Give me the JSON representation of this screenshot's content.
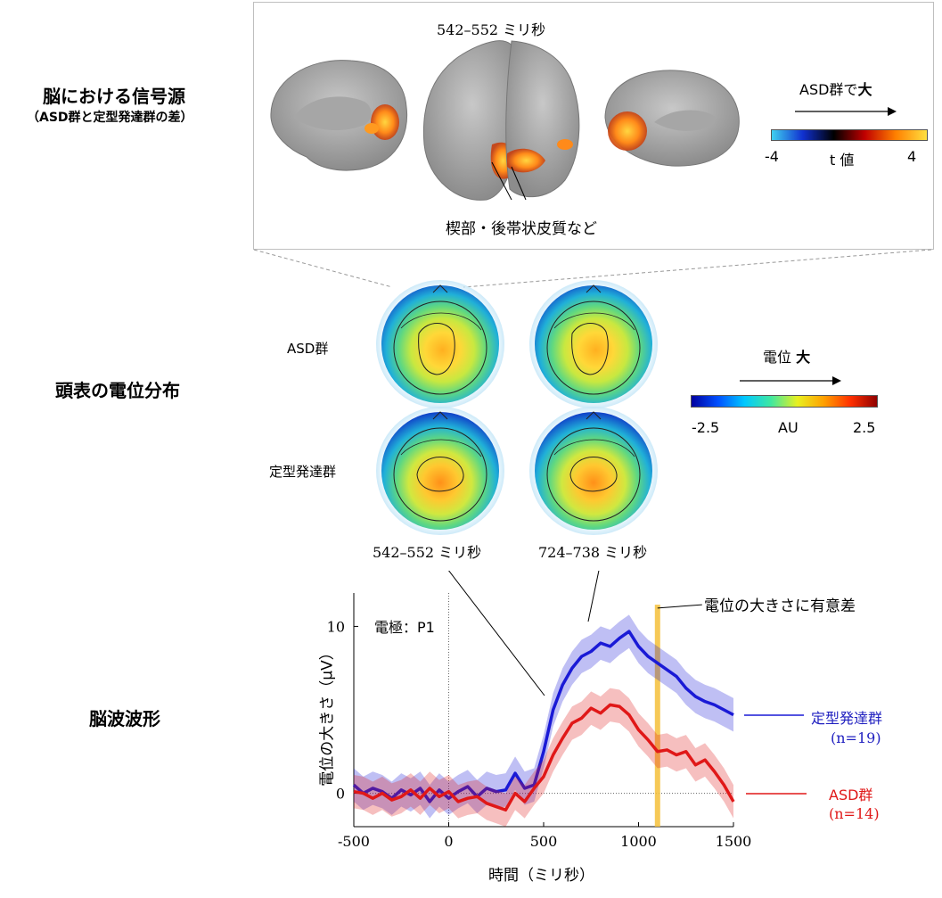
{
  "sections": {
    "brain_source_title": "脳における信号源",
    "brain_source_sub": "（ASD群と定型発達群の差）",
    "scalp_title": "頭表の電位分布",
    "waveform_title": "脳波波形"
  },
  "brain_panel": {
    "time_label": "542–552 ミリ秒",
    "region_label": "楔部・後帯状皮質など",
    "colorbar_title": "ASD群で",
    "colorbar_title_bold": "大",
    "colorbar_axis_label": "t 値",
    "colorbar_min": "-4",
    "colorbar_max": "4",
    "colors": [
      "#3fd0f0",
      "#1030d0",
      "#000000",
      "#c00000",
      "#ff8000",
      "#ffe040"
    ]
  },
  "scalp": {
    "row_labels": [
      "ASD群",
      "定型発達群"
    ],
    "time_labels": [
      "542–552 ミリ秒",
      "724–738 ミリ秒"
    ],
    "colorbar_title": "電位",
    "colorbar_title_bold": "大",
    "colorbar_axis_label": "AU",
    "colorbar_min": "-2.5",
    "colorbar_max": "2.5"
  },
  "chart_data": {
    "type": "line",
    "xlabel": "時間（ミリ秒）",
    "ylabel": "電位の大きさ（μV）",
    "xlim": [
      -500,
      1500
    ],
    "ylim": [
      -2,
      12
    ],
    "xticks": [
      "-500",
      "0",
      "500",
      "1000",
      "1500"
    ],
    "yticks": [
      "0",
      "10"
    ],
    "electrode_label": "電極：P1",
    "significance_label": "電位の大きさに有意差",
    "significance_x": 1100,
    "series": [
      {
        "name": "定型発達群",
        "n_label": "(n=19)",
        "color": "#1a1ad6",
        "x": [
          -500,
          -450,
          -400,
          -350,
          -300,
          -250,
          -200,
          -150,
          -100,
          -50,
          0,
          50,
          100,
          150,
          200,
          250,
          300,
          350,
          400,
          450,
          500,
          550,
          600,
          650,
          700,
          750,
          800,
          850,
          900,
          950,
          1000,
          1050,
          1100,
          1150,
          1200,
          1250,
          1300,
          1350,
          1400,
          1450,
          1500
        ],
        "values": [
          0.5,
          0.0,
          0.3,
          0.1,
          -0.3,
          0.2,
          -0.1,
          0.3,
          -0.5,
          0.2,
          -0.3,
          0.1,
          0.4,
          -0.2,
          0.3,
          0.1,
          0.2,
          1.2,
          0.3,
          0.5,
          2.5,
          5.0,
          6.5,
          7.5,
          8.2,
          8.5,
          9.0,
          8.8,
          9.3,
          9.7,
          8.8,
          8.2,
          7.8,
          7.4,
          7.0,
          6.3,
          5.8,
          5.5,
          5.3,
          5.0,
          4.7
        ]
      },
      {
        "name": "ASD群",
        "n_label": "(n=14)",
        "color": "#e01818",
        "x": [
          -500,
          -450,
          -400,
          -350,
          -300,
          -250,
          -200,
          -150,
          -100,
          -50,
          0,
          50,
          100,
          150,
          200,
          250,
          300,
          350,
          400,
          450,
          500,
          550,
          600,
          650,
          700,
          750,
          800,
          850,
          900,
          950,
          1000,
          1050,
          1100,
          1150,
          1200,
          1250,
          1300,
          1350,
          1400,
          1450,
          1500
        ],
        "values": [
          0.1,
          0.0,
          -0.3,
          0.0,
          -0.4,
          -0.2,
          0.2,
          -0.3,
          0.3,
          -0.2,
          0.1,
          -0.5,
          -0.3,
          -0.2,
          -0.6,
          -0.8,
          -1.0,
          0.0,
          -0.5,
          0.3,
          1.0,
          2.3,
          3.3,
          4.2,
          4.5,
          5.1,
          4.8,
          5.3,
          5.2,
          4.7,
          3.8,
          3.2,
          2.5,
          2.6,
          2.3,
          2.5,
          1.7,
          2.0,
          1.3,
          0.5,
          -0.5
        ]
      }
    ]
  }
}
